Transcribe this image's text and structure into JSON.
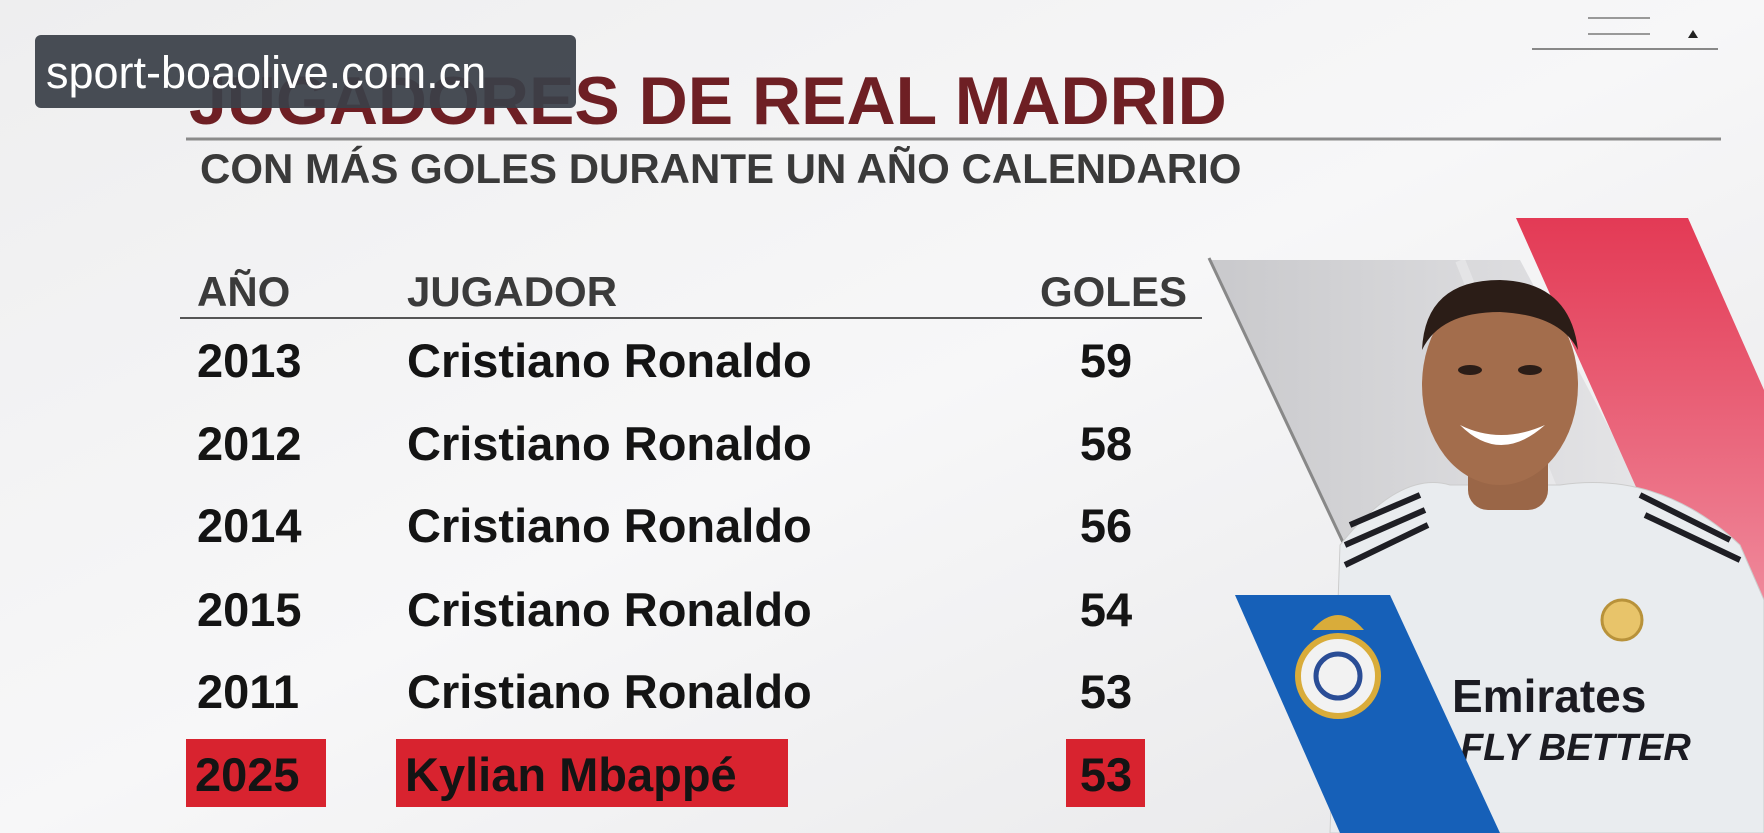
{
  "watermark": "sport-boaolive.com.cn",
  "header": {
    "title": "JUGADORES DE REAL MADRID",
    "subtitle": "CON MÁS GOLES DURANTE UN AÑO CALENDARIO"
  },
  "table": {
    "columns": [
      "AÑO",
      "JUGADOR",
      "GOLES"
    ],
    "rows": [
      {
        "year": 2013,
        "player": "Cristiano Ronaldo",
        "goals": 59,
        "highlight": false
      },
      {
        "year": 2012,
        "player": "Cristiano Ronaldo",
        "goals": 58,
        "highlight": false
      },
      {
        "year": 2014,
        "player": "Cristiano Ronaldo",
        "goals": 56,
        "highlight": false
      },
      {
        "year": 2015,
        "player": "Cristiano Ronaldo",
        "goals": 54,
        "highlight": false
      },
      {
        "year": 2011,
        "player": "Cristiano Ronaldo",
        "goals": 53,
        "highlight": false
      },
      {
        "year": 2025,
        "player": "Kylian Mbappé",
        "goals": 53,
        "highlight": true
      }
    ]
  },
  "photo": {
    "shirt_text": "Emirates",
    "shirt_subtext": "FLY BETTER"
  }
}
